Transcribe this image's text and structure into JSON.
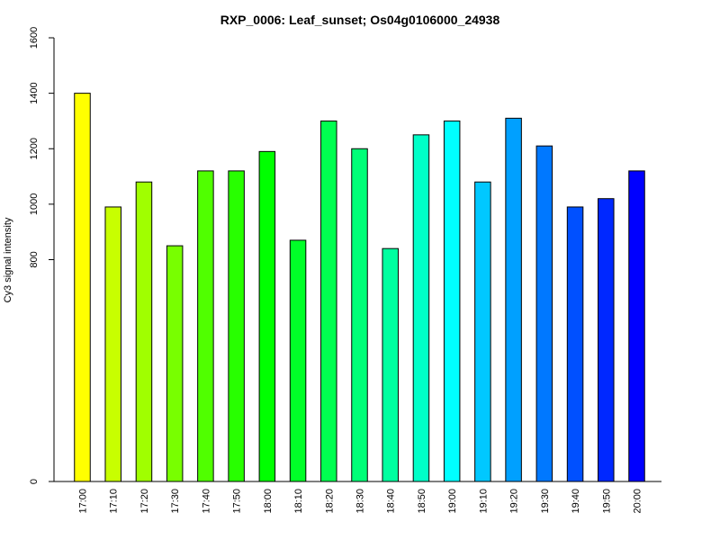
{
  "chart_data": {
    "type": "bar",
    "title": "RXP_0006: Leaf_sunset; Os04g0106000_24938",
    "xlabel": "",
    "ylabel": "Cy3 signal intensity",
    "ylim": [
      0,
      1600
    ],
    "yticks": [
      "0",
      "800",
      "1000",
      "1200",
      "1400",
      "1600"
    ],
    "categories": [
      "17:00",
      "17:10",
      "17:20",
      "17:30",
      "17:40",
      "17:50",
      "18:00",
      "18:10",
      "18:20",
      "18:30",
      "18:40",
      "18:50",
      "19:00",
      "19:10",
      "19:20",
      "19:30",
      "19:40",
      "19:50",
      "20:00"
    ],
    "values": [
      1400,
      990,
      1080,
      850,
      1120,
      1120,
      1190,
      870,
      1300,
      1200,
      840,
      1250,
      1300,
      1080,
      1310,
      1210,
      990,
      1020,
      1120
    ],
    "colors": [
      "#FFFF00",
      "#C8FF00",
      "#A0FF00",
      "#78FF00",
      "#50FF00",
      "#28FF00",
      "#00FF00",
      "#00FF28",
      "#00FF50",
      "#00FF78",
      "#00FFA0",
      "#00FFC8",
      "#00FFFF",
      "#00C8FF",
      "#00A0FF",
      "#0078FF",
      "#0050FF",
      "#0028FF",
      "#0000FF"
    ],
    "grid": false,
    "legend": "none"
  }
}
